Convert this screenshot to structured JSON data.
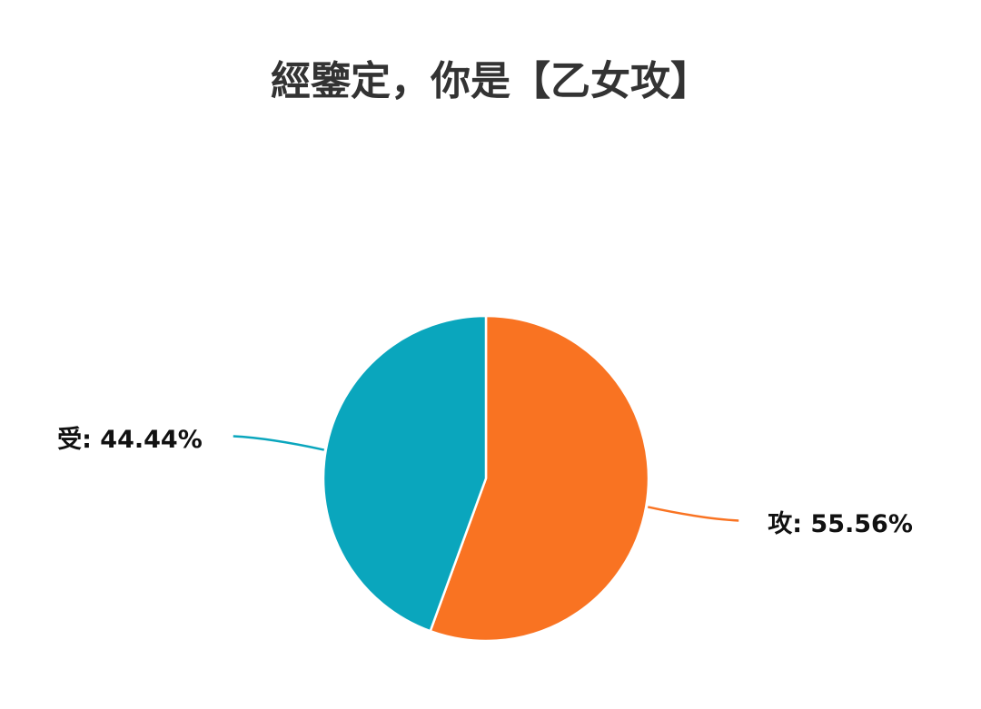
{
  "chart_data": {
    "type": "pie",
    "title": "經鑒定，你是【乙女攻】",
    "values": [
      55.56,
      44.44
    ],
    "value_labels": [
      "攻: 55.56%",
      "受: 44.44%"
    ],
    "colors": [
      "#f97322",
      "#0aa6bd"
    ]
  }
}
